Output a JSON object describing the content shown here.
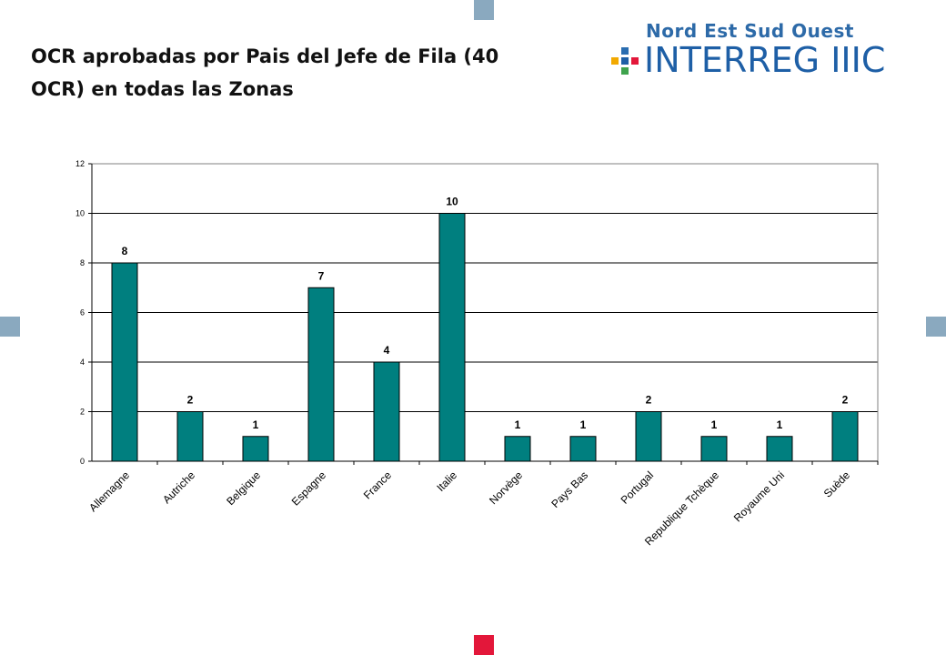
{
  "slide": {
    "title": "OCR aprobadas por Pais del Jefe de Fila (40 OCR) en todas las Zonas"
  },
  "logo": {
    "top_text": "Nord Est Sud Ouest",
    "main_text": "INTERREG IIIC"
  },
  "colors": {
    "bar": "#007f7f",
    "deco_blue": "#8aa9bf",
    "deco_red": "#e3173a",
    "logo_blue": "#1e5fa6"
  },
  "chart_data": {
    "type": "bar",
    "categories": [
      "Allemagne",
      "Autriche",
      "Belgique",
      "Espagne",
      "France",
      "Italie",
      "Norvège",
      "Pays Bas",
      "Portugal",
      "Republique Tchèque",
      "Royaume Uni",
      "Suède"
    ],
    "values": [
      8,
      2,
      1,
      7,
      4,
      10,
      1,
      1,
      2,
      1,
      1,
      2
    ],
    "ylim": [
      0,
      12
    ],
    "yticks": [
      0,
      2,
      4,
      6,
      8,
      10,
      12
    ],
    "grid": true,
    "legend": "none",
    "data_labels": true
  }
}
